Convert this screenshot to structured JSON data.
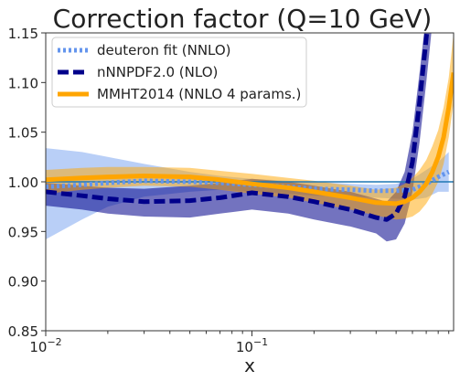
{
  "chart_data": {
    "type": "line",
    "title": "Correction factor (Q=10 GeV)",
    "xlabel": "x",
    "ylabel": "",
    "xscale": "log",
    "xlim": [
      0.01,
      0.95
    ],
    "ylim": [
      0.85,
      1.15
    ],
    "grid": false,
    "legend_position": "top-left",
    "x_ticks": [
      {
        "value": 0.01,
        "label_base": "10",
        "label_exp": "−2"
      },
      {
        "value": 0.1,
        "label_base": "10",
        "label_exp": "−1"
      }
    ],
    "y_ticks": [
      {
        "value": 0.85,
        "label": "0.85"
      },
      {
        "value": 0.9,
        "label": "0.90"
      },
      {
        "value": 0.95,
        "label": "0.95"
      },
      {
        "value": 1.0,
        "label": "1.00"
      },
      {
        "value": 1.05,
        "label": "1.05"
      },
      {
        "value": 1.1,
        "label": "1.10"
      },
      {
        "value": 1.15,
        "label": "1.15"
      }
    ],
    "reference_line": {
      "y": 1.0,
      "color": "#1f77b4"
    },
    "series": [
      {
        "name": "deuteron fit (NNLO)",
        "color": "#6495ed",
        "band_color": "#6495ed",
        "style": "dotted",
        "x": [
          0.01,
          0.015,
          0.02,
          0.03,
          0.05,
          0.07,
          0.1,
          0.15,
          0.2,
          0.3,
          0.4,
          0.5,
          0.6,
          0.7,
          0.8,
          0.9
        ],
        "center": [
          0.995,
          0.997,
          0.999,
          1.001,
          1.0,
          0.999,
          0.997,
          0.995,
          0.993,
          0.992,
          0.991,
          0.991,
          0.992,
          0.998,
          1.005,
          1.01
        ],
        "upper": [
          1.034,
          1.03,
          1.025,
          1.018,
          1.01,
          1.006,
          1.003,
          1.001,
          1.0,
          0.998,
          0.997,
          0.998,
          1.003,
          1.012,
          1.02,
          1.03
        ],
        "lower": [
          0.942,
          0.962,
          0.975,
          0.985,
          0.99,
          0.992,
          0.99,
          0.988,
          0.986,
          0.985,
          0.984,
          0.983,
          0.982,
          0.984,
          0.99,
          0.99
        ]
      },
      {
        "name": "nNNPDF2.0 (NLO)",
        "color": "#00008b",
        "band_color": "#00008b",
        "style": "dashed",
        "x": [
          0.01,
          0.015,
          0.02,
          0.03,
          0.05,
          0.07,
          0.1,
          0.15,
          0.2,
          0.3,
          0.4,
          0.45,
          0.5,
          0.55,
          0.6,
          0.65,
          0.7,
          0.75
        ],
        "center": [
          0.99,
          0.986,
          0.983,
          0.98,
          0.981,
          0.984,
          0.989,
          0.985,
          0.98,
          0.972,
          0.964,
          0.962,
          0.968,
          0.985,
          1.02,
          1.08,
          1.145,
          1.2
        ],
        "upper": [
          0.999,
          0.996,
          0.994,
          0.993,
          0.996,
          0.999,
          1.003,
          1.0,
          0.996,
          0.99,
          0.983,
          0.98,
          0.99,
          1.01,
          1.05,
          1.11,
          1.17,
          1.2
        ],
        "lower": [
          0.976,
          0.972,
          0.968,
          0.965,
          0.964,
          0.968,
          0.972,
          0.968,
          0.962,
          0.955,
          0.948,
          0.94,
          0.942,
          0.958,
          0.99,
          1.04,
          1.1,
          1.16
        ]
      },
      {
        "name": "MMHT2014 (NNLO 4 params.)",
        "color": "#ffa500",
        "band_color": "#ffa500",
        "style": "solid",
        "x": [
          0.01,
          0.015,
          0.02,
          0.03,
          0.05,
          0.07,
          0.1,
          0.15,
          0.2,
          0.3,
          0.4,
          0.5,
          0.55,
          0.6,
          0.65,
          0.7,
          0.75,
          0.8,
          0.85,
          0.9,
          0.95
        ],
        "center": [
          1.002,
          1.004,
          1.005,
          1.006,
          1.005,
          1.002,
          0.998,
          0.994,
          0.99,
          0.984,
          0.979,
          0.978,
          0.98,
          0.984,
          0.99,
          0.998,
          1.01,
          1.025,
          1.045,
          1.075,
          1.11
        ],
        "upper": [
          1.012,
          1.014,
          1.015,
          1.015,
          1.014,
          1.011,
          1.008,
          1.004,
          1.001,
          0.996,
          0.992,
          0.994,
          0.998,
          1.004,
          1.012,
          1.022,
          1.036,
          1.052,
          1.075,
          1.105,
          1.15
        ],
        "lower": [
          0.988,
          0.992,
          0.994,
          0.996,
          0.995,
          0.992,
          0.988,
          0.984,
          0.979,
          0.972,
          0.966,
          0.962,
          0.963,
          0.965,
          0.97,
          0.978,
          0.988,
          1.0,
          1.018,
          1.045,
          1.08
        ]
      }
    ]
  }
}
